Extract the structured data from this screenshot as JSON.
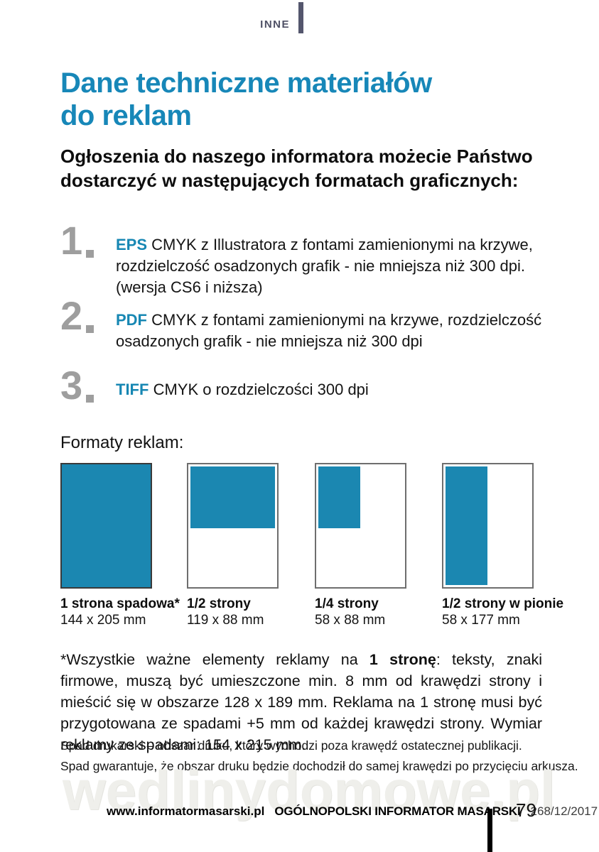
{
  "header": {
    "section_label": "INNE"
  },
  "title": {
    "line1": "Dane techniczne materiałów",
    "line2": "do reklam"
  },
  "intro": "Ogłoszenia do naszego informatora możecie Państwo dostarczyć w następujących formatach graficznych:",
  "formats_list": [
    {
      "number": "1",
      "format": "EPS",
      "description": "CMYK z Illustratora z fontami zamienionymi na krzywe, rozdzielczość osadzonych grafik - nie mniejsza niż 300 dpi. (wersja CS6 i niższa)"
    },
    {
      "number": "2",
      "format": "PDF",
      "description": "CMYK z fontami zamienionymi na krzywe, rozdzielczość osadzonych grafik - nie mniejsza niż 300 dpi"
    },
    {
      "number": "3",
      "format": "TIFF",
      "description": "CMYK o rozdzielczości 300 dpi"
    }
  ],
  "ad_formats": {
    "heading": "Formaty reklam:",
    "items": [
      {
        "name": "1 strona spadowa*",
        "size": "144 x 205 mm",
        "fill": "full-page"
      },
      {
        "name": "1/2 strony",
        "size": "119 x 88 mm",
        "fill": "top-half"
      },
      {
        "name": "1/4 strony",
        "size": "58 x 88 mm",
        "fill": "top-left-quarter"
      },
      {
        "name": "1/2 strony w pionie",
        "size": "58 x 177 mm",
        "fill": "left-vertical-half"
      }
    ]
  },
  "footnote": {
    "prefix": "*Wszystkie ważne elementy reklamy na ",
    "bold": "1 stronę",
    "suffix": ": teksty, znaki firmowe, muszą być umieszczone min. 8 mm od krawędzi strony i mieścić się w obszarze 128 x 189 mm. Reklama na 1 stronę musi być przygotowana ze spadami +5 mm od każdej krawędzi strony. Wymiar reklamy ze spadami: 154 x 215 mm."
  },
  "notes": [
    "Spad drukarski – obszar druku, który wychodzi poza krawędź ostatecznej publikacji.",
    "Spad gwarantuje, że obszar druku będzie dochodził do samej krawędzi po przycięciu arkusza."
  ],
  "watermark": "wedlinydomowe.pl",
  "footer": {
    "website": "www.informatormasarski.pl",
    "publication": "OGÓLNOPOLSKI INFORMATOR MASARSKI",
    "issue": "268/12/2017",
    "page_number": "79"
  },
  "colors": {
    "accent_teal": "#1787b3",
    "diagram_fill": "#1b87b1",
    "number_gray": "#9e9e9e",
    "header_slate": "#54566d"
  }
}
